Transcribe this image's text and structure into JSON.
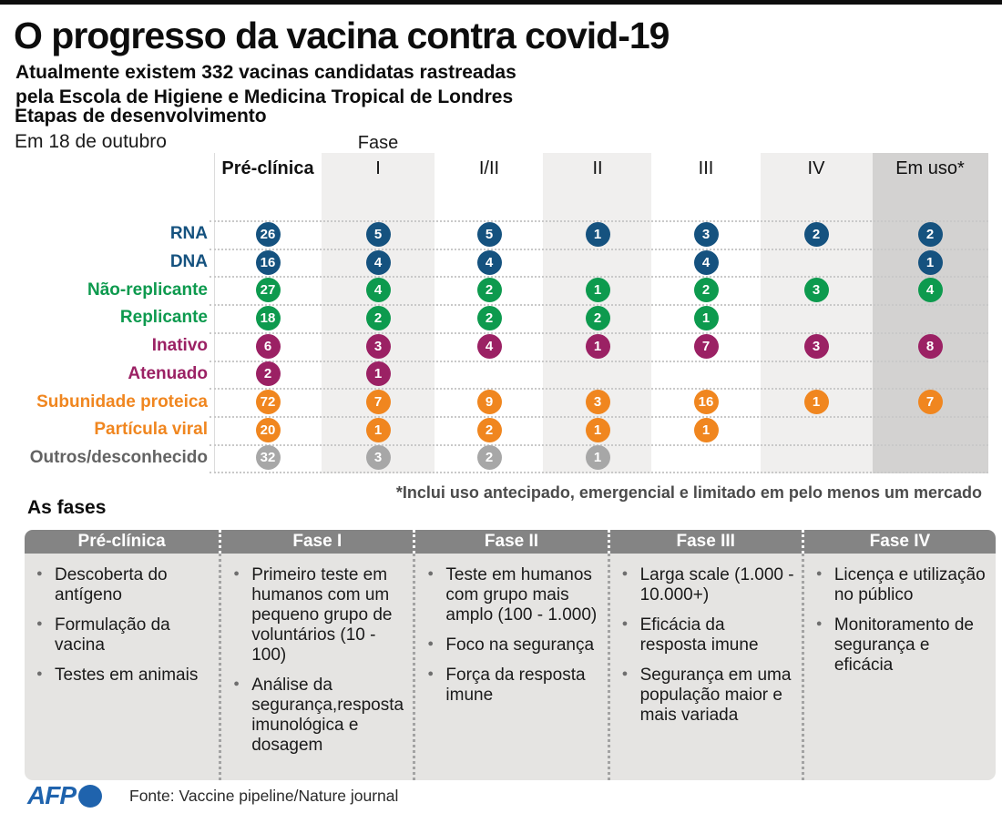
{
  "header": {
    "title": "O progresso da vacina contra covid-19",
    "subtitle_line1": "Atualmente existem 332 vacinas candidatas rastreadas",
    "subtitle_line2": "pela Escola de Higiene e Medicina Tropical de Londres"
  },
  "chart_data": {
    "type": "table",
    "title": "Etapas de desenvolvimento",
    "as_of": "Em 18 de outubro",
    "phase_axis_label": "Fase",
    "columns": [
      "Pré-clínica",
      "I",
      "I/II",
      "II",
      "III",
      "IV",
      "Em uso*"
    ],
    "rows": [
      {
        "label": "RNA",
        "color": "blue",
        "values": [
          26,
          5,
          5,
          1,
          3,
          2,
          2
        ]
      },
      {
        "label": "DNA",
        "color": "blue",
        "values": [
          16,
          4,
          4,
          null,
          4,
          null,
          1
        ]
      },
      {
        "label": "Não-replicante",
        "color": "green",
        "values": [
          27,
          4,
          2,
          1,
          2,
          3,
          4
        ]
      },
      {
        "label": "Replicante",
        "color": "green",
        "values": [
          18,
          2,
          2,
          2,
          1,
          null,
          null
        ]
      },
      {
        "label": "Inativo",
        "color": "purple",
        "values": [
          6,
          3,
          4,
          1,
          7,
          3,
          8
        ]
      },
      {
        "label": "Atenuado",
        "color": "purple",
        "values": [
          2,
          1,
          null,
          null,
          null,
          null,
          null
        ]
      },
      {
        "label": "Subunidade proteica",
        "color": "orange",
        "values": [
          72,
          7,
          9,
          3,
          16,
          1,
          7
        ]
      },
      {
        "label": "Partícula viral",
        "color": "orange",
        "values": [
          20,
          1,
          2,
          1,
          1,
          null,
          null
        ]
      },
      {
        "label": "Outros/desconhecido",
        "color": "gray",
        "values": [
          32,
          3,
          2,
          1,
          null,
          null,
          null
        ]
      }
    ],
    "footnote": "*Inclui uso antecipado, emergencial e limitado em pelo menos um mercado"
  },
  "colors": {
    "blue": "#15527f",
    "green": "#0d9a4e",
    "purple": "#9b2164",
    "orange": "#f0861f",
    "gray": "#a7a7a7",
    "gray_label": "#636363",
    "afp_blue": "#1f63ad"
  },
  "phases": {
    "section_title": "As fases",
    "cards": [
      {
        "title": "Pré-clínica",
        "bullets": [
          "Descoberta do antígeno",
          "Formulação da vacina",
          "Testes em animais"
        ]
      },
      {
        "title": "Fase I",
        "bullets": [
          "Primeiro teste em humanos com um pequeno grupo de voluntários (10 - 100)",
          "Análise da segurança,resposta imunológica e dosagem"
        ]
      },
      {
        "title": "Fase II",
        "bullets": [
          "Teste em humanos com grupo mais amplo (100 - 1.000)",
          "Foco na segurança",
          "Força da resposta imune"
        ]
      },
      {
        "title": "Fase III",
        "bullets": [
          "Larga scale (1.000 - 10.000+)",
          "Eficácia da resposta imune",
          "Segurança em uma população maior e mais variada"
        ]
      },
      {
        "title": "Fase IV",
        "bullets": [
          "Licença e utilização no público",
          "Monitoramento de segurança e eficácia"
        ]
      }
    ]
  },
  "footer": {
    "logo_text": "AFP",
    "source": "Fonte: Vaccine pipeline/Nature journal"
  }
}
